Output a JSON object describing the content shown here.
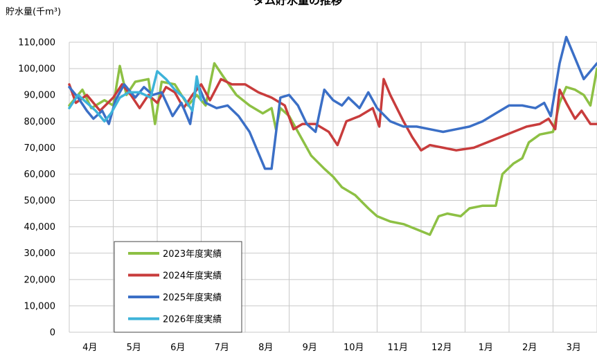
{
  "chart_data": {
    "type": "line",
    "title": "ダム貯水量の推移",
    "ylabel": "貯水量(千m³)",
    "xlabel": "",
    "ylim": [
      0,
      110000
    ],
    "yticks": [
      "0",
      "10,000",
      "20,000",
      "30,000",
      "40,000",
      "50,000",
      "60,000",
      "70,000",
      "80,000",
      "90,000",
      "100,000",
      "110,000"
    ],
    "categories": [
      "4月",
      "5月",
      "6月",
      "7月",
      "8月",
      "9月",
      "10月",
      "11月",
      "12月",
      "1月",
      "2月",
      "3月"
    ],
    "grid": true,
    "legend_position": "bottom-left inside",
    "series": [
      {
        "name": "2023年度実績",
        "color": "#8dc044",
        "points": [
          [
            0,
            86000
          ],
          [
            0.3,
            92000
          ],
          [
            0.5,
            85000
          ],
          [
            0.8,
            88000
          ],
          [
            1.0,
            86000
          ],
          [
            1.15,
            101000
          ],
          [
            1.3,
            90000
          ],
          [
            1.5,
            95000
          ],
          [
            1.8,
            96000
          ],
          [
            1.95,
            79000
          ],
          [
            2.1,
            95000
          ],
          [
            2.4,
            94000
          ],
          [
            2.7,
            86000
          ],
          [
            2.9,
            90000
          ],
          [
            3.1,
            86000
          ],
          [
            3.3,
            102000
          ],
          [
            3.5,
            97000
          ],
          [
            3.8,
            90000
          ],
          [
            4.1,
            86000
          ],
          [
            4.4,
            83000
          ],
          [
            4.6,
            85000
          ],
          [
            4.7,
            77000
          ],
          [
            4.8,
            85000
          ],
          [
            5.0,
            82000
          ],
          [
            5.2,
            76000
          ],
          [
            5.5,
            67000
          ],
          [
            5.8,
            62000
          ],
          [
            6.0,
            59000
          ],
          [
            6.2,
            55000
          ],
          [
            6.5,
            52000
          ],
          [
            6.8,
            47000
          ],
          [
            7.0,
            44000
          ],
          [
            7.3,
            42000
          ],
          [
            7.6,
            41000
          ],
          [
            7.9,
            39000
          ],
          [
            8.2,
            37000
          ],
          [
            8.4,
            44000
          ],
          [
            8.6,
            45000
          ],
          [
            8.9,
            44000
          ],
          [
            9.1,
            47000
          ],
          [
            9.4,
            48000
          ],
          [
            9.7,
            48000
          ],
          [
            9.85,
            60000
          ],
          [
            10.1,
            64000
          ],
          [
            10.3,
            66000
          ],
          [
            10.45,
            72000
          ],
          [
            10.7,
            75000
          ],
          [
            11.0,
            76000
          ],
          [
            11.15,
            87000
          ],
          [
            11.3,
            93000
          ],
          [
            11.5,
            92000
          ],
          [
            11.7,
            90000
          ],
          [
            11.85,
            86000
          ],
          [
            12.0,
            100000
          ]
        ]
      },
      {
        "name": "2024年度実績",
        "color": "#c83c3c",
        "points": [
          [
            0,
            94000
          ],
          [
            0.15,
            87000
          ],
          [
            0.4,
            90000
          ],
          [
            0.7,
            84000
          ],
          [
            1.0,
            89000
          ],
          [
            1.2,
            94000
          ],
          [
            1.4,
            90000
          ],
          [
            1.6,
            85000
          ],
          [
            1.8,
            90000
          ],
          [
            2.0,
            87000
          ],
          [
            2.2,
            93000
          ],
          [
            2.4,
            91000
          ],
          [
            2.6,
            85000
          ],
          [
            2.8,
            90000
          ],
          [
            3.0,
            94000
          ],
          [
            3.2,
            88000
          ],
          [
            3.45,
            96000
          ],
          [
            3.7,
            94000
          ],
          [
            4.0,
            94000
          ],
          [
            4.3,
            91000
          ],
          [
            4.6,
            89000
          ],
          [
            4.9,
            86000
          ],
          [
            5.1,
            77000
          ],
          [
            5.3,
            79000
          ],
          [
            5.6,
            79000
          ],
          [
            5.9,
            76000
          ],
          [
            6.1,
            71000
          ],
          [
            6.3,
            80000
          ],
          [
            6.6,
            82000
          ],
          [
            6.9,
            85000
          ],
          [
            7.05,
            78000
          ],
          [
            7.15,
            96000
          ],
          [
            7.3,
            90000
          ],
          [
            7.6,
            80000
          ],
          [
            7.8,
            74000
          ],
          [
            8.0,
            69000
          ],
          [
            8.2,
            71000
          ],
          [
            8.5,
            70000
          ],
          [
            8.8,
            69000
          ],
          [
            9.2,
            70000
          ],
          [
            9.5,
            72000
          ],
          [
            9.8,
            74000
          ],
          [
            10.1,
            76000
          ],
          [
            10.4,
            78000
          ],
          [
            10.7,
            79000
          ],
          [
            10.9,
            81000
          ],
          [
            11.05,
            77000
          ],
          [
            11.15,
            92000
          ],
          [
            11.3,
            87000
          ],
          [
            11.5,
            81000
          ],
          [
            11.65,
            84000
          ],
          [
            11.85,
            79000
          ],
          [
            12.0,
            79000
          ]
        ]
      },
      {
        "name": "2025年度実績",
        "color": "#3b6fc6",
        "points": [
          [
            0,
            93000
          ],
          [
            0.2,
            89000
          ],
          [
            0.4,
            84000
          ],
          [
            0.55,
            81000
          ],
          [
            0.75,
            84000
          ],
          [
            0.9,
            79000
          ],
          [
            1.05,
            88000
          ],
          [
            1.25,
            94000
          ],
          [
            1.5,
            89000
          ],
          [
            1.7,
            93000
          ],
          [
            1.9,
            90000
          ],
          [
            2.1,
            91000
          ],
          [
            2.35,
            82000
          ],
          [
            2.55,
            87000
          ],
          [
            2.75,
            79000
          ],
          [
            2.9,
            95000
          ],
          [
            3.1,
            87000
          ],
          [
            3.35,
            85000
          ],
          [
            3.6,
            86000
          ],
          [
            3.85,
            82000
          ],
          [
            4.1,
            76000
          ],
          [
            4.3,
            68000
          ],
          [
            4.45,
            62000
          ],
          [
            4.6,
            62000
          ],
          [
            4.8,
            89000
          ],
          [
            5.0,
            90000
          ],
          [
            5.2,
            86000
          ],
          [
            5.4,
            79000
          ],
          [
            5.6,
            76000
          ],
          [
            5.8,
            92000
          ],
          [
            6.0,
            88000
          ],
          [
            6.2,
            86000
          ],
          [
            6.35,
            89000
          ],
          [
            6.6,
            85000
          ],
          [
            6.8,
            91000
          ],
          [
            7.0,
            85000
          ],
          [
            7.3,
            80000
          ],
          [
            7.6,
            78000
          ],
          [
            7.9,
            78000
          ],
          [
            8.2,
            77000
          ],
          [
            8.5,
            76000
          ],
          [
            8.8,
            77000
          ],
          [
            9.1,
            78000
          ],
          [
            9.4,
            80000
          ],
          [
            9.7,
            83000
          ],
          [
            10.0,
            86000
          ],
          [
            10.3,
            86000
          ],
          [
            10.6,
            85000
          ],
          [
            10.8,
            87000
          ],
          [
            10.95,
            82000
          ],
          [
            11.15,
            102000
          ],
          [
            11.3,
            112000
          ],
          [
            11.5,
            104000
          ],
          [
            11.7,
            96000
          ],
          [
            11.85,
            99000
          ],
          [
            12.0,
            102000
          ]
        ]
      },
      {
        "name": "2026年度実績",
        "color": "#3eb3d9",
        "points": [
          [
            0,
            85000
          ],
          [
            0.2,
            90000
          ],
          [
            0.4,
            87000
          ],
          [
            0.6,
            84000
          ],
          [
            0.8,
            80000
          ],
          [
            0.95,
            83000
          ],
          [
            1.15,
            89000
          ],
          [
            1.35,
            91000
          ],
          [
            1.6,
            91000
          ],
          [
            1.85,
            89000
          ],
          [
            2.0,
            99000
          ],
          [
            2.2,
            96000
          ],
          [
            2.4,
            92000
          ],
          [
            2.6,
            89000
          ],
          [
            2.8,
            84000
          ],
          [
            2.9,
            97000
          ],
          [
            3.0,
            88000
          ]
        ]
      }
    ]
  }
}
